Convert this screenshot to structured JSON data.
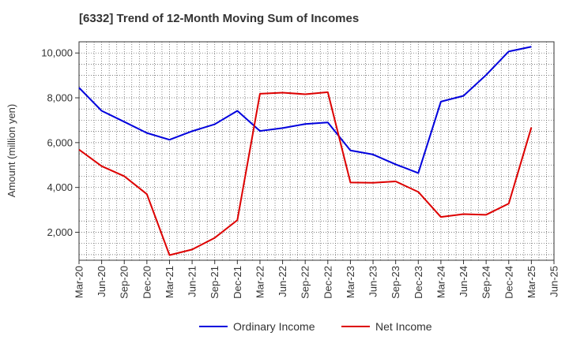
{
  "chart_data": {
    "type": "line",
    "title": "[6332]  Trend of 12-Month Moving Sum of Incomes",
    "xlabel": "",
    "ylabel": "Amount (million yen)",
    "ylim": [
      750,
      10500
    ],
    "yticks": [
      2000,
      4000,
      6000,
      8000,
      10000
    ],
    "ytick_labels": [
      "2,000",
      "4,000",
      "6,000",
      "8,000",
      "10,000"
    ],
    "grid": true,
    "legend_position": "bottom-center",
    "x": [
      "Mar-20",
      "Jun-20",
      "Sep-20",
      "Dec-20",
      "Mar-21",
      "Jun-21",
      "Sep-21",
      "Dec-21",
      "Mar-22",
      "Jun-22",
      "Sep-22",
      "Dec-22",
      "Mar-23",
      "Jun-23",
      "Sep-23",
      "Dec-23",
      "Mar-24",
      "Jun-24",
      "Sep-24",
      "Dec-24",
      "Mar-25",
      "Jun-25"
    ],
    "series": [
      {
        "name": "Ordinary Income",
        "color": "#0000dd",
        "values": [
          8450,
          7420,
          6930,
          6430,
          6130,
          6510,
          6820,
          7420,
          6520,
          6650,
          6830,
          6900,
          5650,
          5470,
          5030,
          4640,
          7830,
          8090,
          9020,
          10070,
          10280,
          null
        ]
      },
      {
        "name": "Net Income",
        "color": "#dd0000",
        "values": [
          5690,
          4950,
          4500,
          3700,
          980,
          1230,
          1750,
          2540,
          8180,
          8230,
          8160,
          8250,
          4220,
          4210,
          4270,
          3800,
          2680,
          2810,
          2780,
          3280,
          6680,
          null
        ]
      }
    ]
  }
}
